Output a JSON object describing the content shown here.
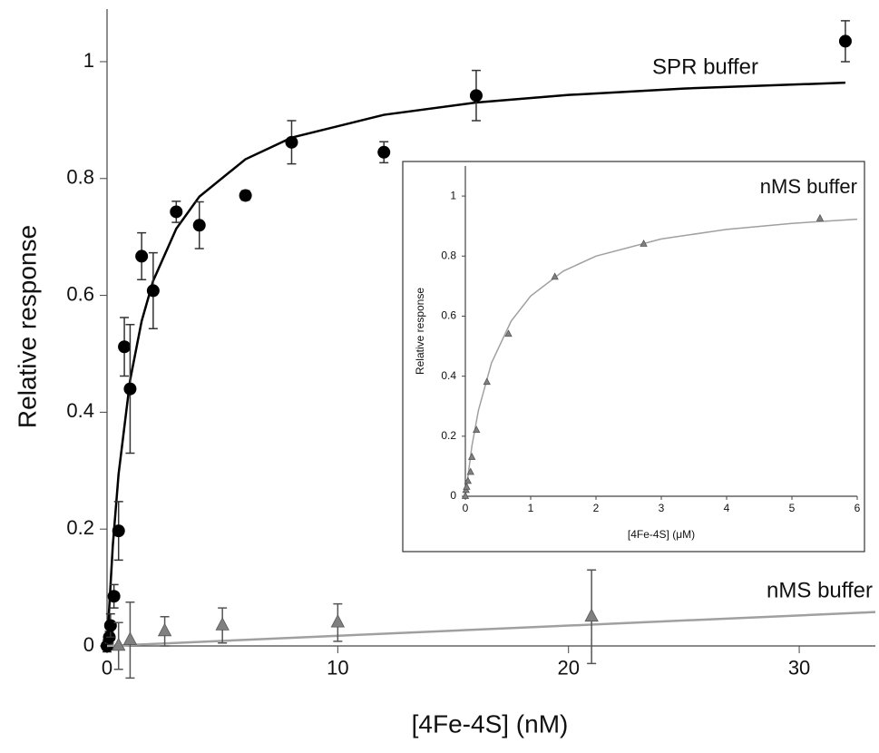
{
  "chart_data": [
    {
      "type": "scatter",
      "xlabel": "[4Fe-4S] (nM)",
      "ylabel": "Relative response",
      "xlim": [
        0,
        33.3
      ],
      "ylim": [
        0,
        1.09
      ],
      "xticks": [
        0,
        10,
        20,
        30
      ],
      "yticks": [
        0,
        0.2,
        0.4,
        0.6,
        0.8,
        1
      ],
      "label_color": "#e8202a",
      "series": [
        {
          "name": "SPR buffer",
          "color": "#000000",
          "marker": "circle",
          "x": [
            0,
            0.1,
            0.15,
            0.3,
            0.5,
            0.75,
            1,
            1.5,
            2,
            3,
            4,
            6,
            8,
            12,
            16,
            32
          ],
          "values": [
            0,
            0.015,
            0.035,
            0.085,
            0.197,
            0.512,
            0.44,
            0.667,
            0.608,
            0.743,
            0.72,
            0.771,
            0.862,
            0.845,
            0.942,
            1.035
          ],
          "errors": [
            0.01,
            0.01,
            0.02,
            0.02,
            0.05,
            0.05,
            0.11,
            0.04,
            0.065,
            0.018,
            0.04,
            0.008,
            0.037,
            0.018,
            0.043,
            0.035
          ],
          "fit": {
            "color": "#000000",
            "x": [
              0,
              0.25,
              0.5,
              1,
              1.5,
              2,
              3,
              4,
              6,
              8,
              12,
              16,
              20,
              25,
              32
            ],
            "values": [
              0,
              0.172,
              0.294,
              0.455,
              0.556,
              0.625,
              0.714,
              0.769,
              0.833,
              0.87,
              0.909,
              0.93,
              0.943,
              0.954,
              0.964
            ]
          }
        },
        {
          "name": "nMS buffer",
          "color": "#808080",
          "marker": "triangle",
          "x": [
            0.5,
            1,
            2.5,
            5,
            10,
            21
          ],
          "values": [
            0,
            0.01,
            0.025,
            0.035,
            0.04,
            0.05
          ],
          "errors": [
            0.04,
            0.065,
            0.025,
            0.03,
            0.032,
            0.08
          ],
          "fit": {
            "color": "#a0a0a0",
            "x": [
              0,
              33.3
            ],
            "values": [
              0,
              0.058
            ]
          }
        }
      ]
    },
    {
      "type": "scatter",
      "xlabel": "[4Fe-4S] (μM)",
      "ylabel": "Relative response",
      "xlim": [
        0,
        6
      ],
      "ylim": [
        0,
        1.1
      ],
      "xticks": [
        0,
        1,
        2,
        3,
        4,
        5,
        6
      ],
      "yticks": [
        0,
        0.2,
        0.4,
        0.6,
        0.8,
        1
      ],
      "label_color": "#e8202a",
      "series": [
        {
          "name": "nMS buffer",
          "color": "#808080",
          "marker": "triangle",
          "x": [
            0,
            0.01,
            0.02,
            0.04,
            0.08,
            0.1,
            0.17,
            0.33,
            0.66,
            1.37,
            2.73,
            5.43
          ],
          "values": [
            0,
            0.02,
            0.03,
            0.05,
            0.08,
            0.13,
            0.22,
            0.38,
            0.54,
            0.73,
            0.84,
            0.925
          ],
          "fit": {
            "color": "#a0a0a0",
            "x": [
              0,
              0.1,
              0.2,
              0.4,
              0.7,
              1,
              1.5,
              2,
              3,
              4,
              5,
              6
            ],
            "values": [
              0,
              0.167,
              0.286,
              0.444,
              0.583,
              0.667,
              0.75,
              0.8,
              0.857,
              0.889,
              0.909,
              0.923
            ]
          }
        }
      ]
    }
  ]
}
